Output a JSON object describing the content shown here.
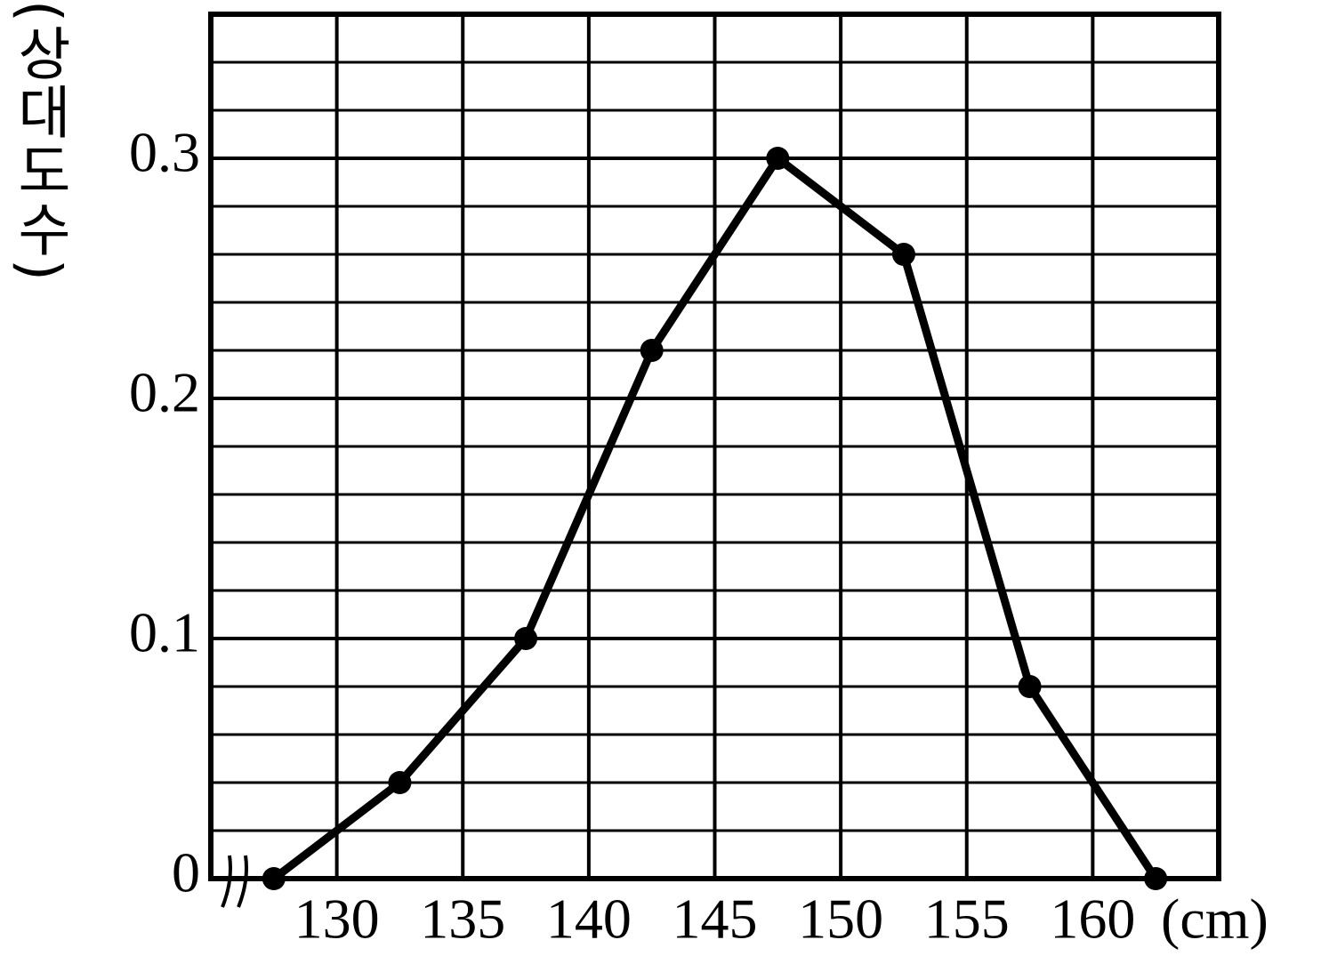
{
  "chart_data": {
    "type": "line",
    "x_label": "(cm)",
    "y_label": "(상대도수)",
    "x": [
      127.5,
      132.5,
      137.5,
      142.5,
      147.5,
      152.5,
      157.5,
      162.5
    ],
    "series": [
      {
        "color": "#000000",
        "values": [
          0,
          0.04,
          0.1,
          0.22,
          0.3,
          0.26,
          0.08,
          0
        ]
      }
    ],
    "xlim": [
      125,
      165
    ],
    "ylim": [
      0,
      0.36
    ],
    "xticks": [
      130,
      135,
      140,
      145,
      150,
      155,
      160
    ],
    "yticks": [
      0,
      0.1,
      0.2,
      0.3
    ],
    "y_minor_ticks": [
      0.02,
      0.04,
      0.06,
      0.08,
      0.12,
      0.14,
      0.16,
      0.18,
      0.22,
      0.24,
      0.26,
      0.28,
      0.32,
      0.34
    ],
    "grid": true
  }
}
